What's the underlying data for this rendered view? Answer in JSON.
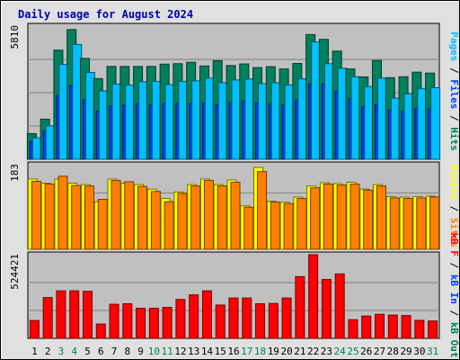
{
  "colors": {
    "hits": "#00805c",
    "files": "#0040ff",
    "pages": "#00c0ff",
    "visits": "#ffff00",
    "sites": "#ff8000",
    "kb_out": "#00805c",
    "kb_in": "#0040ff",
    "kb_f": "#ff0000",
    "weekend_day": "#00805c",
    "weekday_day": "#000000",
    "plot_bg": "#c0c0c0",
    "frame_bg": "#e0e0e0",
    "title": "#0000a8"
  },
  "chart_data": {
    "type": "bar",
    "title": "Daily usage for August 2024",
    "categories": [
      "1",
      "2",
      "3",
      "4",
      "5",
      "6",
      "7",
      "8",
      "9",
      "10",
      "11",
      "12",
      "13",
      "14",
      "15",
      "16",
      "17",
      "18",
      "19",
      "20",
      "21",
      "22",
      "23",
      "24",
      "25",
      "26",
      "27",
      "28",
      "29",
      "30",
      "31"
    ],
    "weekend_days": [
      "3",
      "4",
      "10",
      "11",
      "17",
      "18",
      "24",
      "25",
      "31"
    ],
    "grid": true,
    "panels": [
      {
        "id": "hits_files_pages",
        "ymax_label": "5810",
        "ylim": [
          0,
          5810
        ],
        "legend": [
          "Pages",
          "Files",
          "Hits"
        ],
        "legend_separator": " / ",
        "series": [
          {
            "name": "Hits",
            "color_key": "hits",
            "values": [
              1120,
              1750,
              4760,
              5660,
              4400,
              3520,
              4050,
              4050,
              4050,
              4050,
              4150,
              4170,
              4230,
              4070,
              4300,
              4090,
              4160,
              4000,
              4040,
              3940,
              4180,
              5440,
              5230,
              4720,
              3940,
              3590,
              4310,
              3560,
              3600,
              3800,
              3760
            ]
          },
          {
            "name": "Files",
            "color_key": "files",
            "values": [
              780,
              1230,
              2780,
              3220,
              2600,
              2100,
              2320,
              2350,
              2420,
              2380,
              2430,
              2440,
              2430,
              2440,
              2380,
              2480,
              2550,
              2450,
              2410,
              2370,
              2590,
              3280,
              3290,
              2970,
              2650,
              2290,
              2390,
              2150,
              2080,
              2220,
              2210
            ]
          },
          {
            "name": "Pages",
            "color_key": "pages",
            "values": [
              940,
              1460,
              4140,
              5010,
              3790,
              2980,
              3280,
              3240,
              3380,
              3400,
              3260,
              3400,
              3420,
              3540,
              3340,
              3460,
              3500,
              3300,
              3340,
              3240,
              3510,
              5120,
              4170,
              3970,
              3600,
              3170,
              3540,
              2670,
              2850,
              3090,
              3120
            ]
          }
        ]
      },
      {
        "id": "visits_sites",
        "ymax_label": "183",
        "ylim": [
          0,
          183
        ],
        "legend": [
          "Visits",
          "Sites"
        ],
        "legend_separator": " / ",
        "series": [
          {
            "name": "Visits",
            "color_key": "visits",
            "values": [
              152,
              143,
              152,
              143,
              140,
              103,
              152,
              143,
              140,
              130,
              110,
              124,
              140,
              152,
              140,
              150,
              94,
              177,
              104,
              102,
              113,
              137,
              144,
              142,
              145,
              130,
              140,
              114,
              113,
              114,
              115
            ]
          },
          {
            "name": "Sites",
            "color_key": "sites",
            "values": [
              147,
              141,
              158,
              138,
              137,
              108,
              149,
              146,
              136,
              125,
              103,
              121,
              137,
              149,
              137,
              145,
              91,
              168,
              102,
              99,
              110,
              133,
              141,
              139,
              141,
              128,
              137,
              111,
              110,
              111,
              113
            ]
          }
        ]
      },
      {
        "id": "kbytes",
        "ymax_label": "524421",
        "ylim": [
          0,
          524421
        ],
        "legend": [
          "kB F",
          "kB In",
          "kB Out"
        ],
        "legend_separator": " / ",
        "series": [
          {
            "name": "kB F",
            "color_key": "kb_f",
            "values": [
              112000,
              256000,
              298000,
              298000,
              295000,
              90000,
              214000,
              217000,
              189000,
              189000,
              194000,
              244000,
              273000,
              298000,
              209000,
              253000,
              253000,
              217000,
              219000,
              253000,
              387000,
              524421,
              369000,
              404000,
              117000,
              140000,
              151000,
              146000,
              143000,
              113000,
              109000
            ]
          }
        ]
      }
    ]
  }
}
